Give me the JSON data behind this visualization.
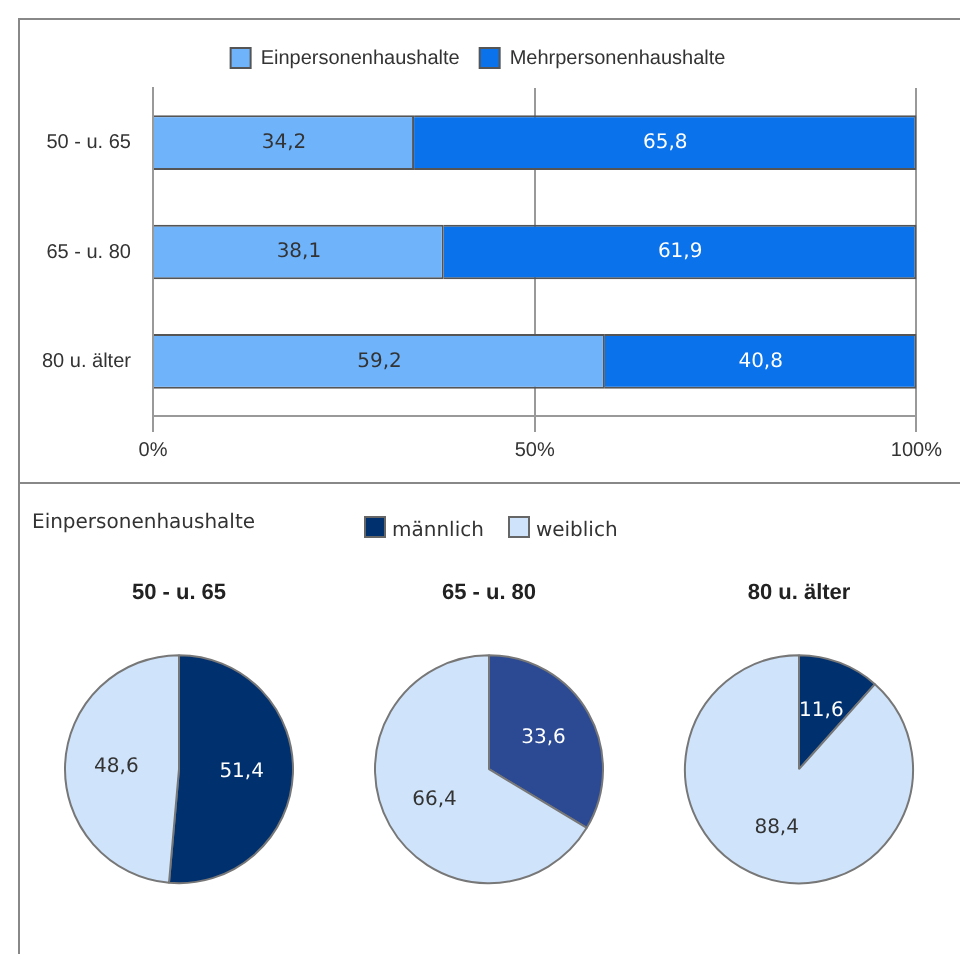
{
  "chart_data": [
    {
      "type": "bar",
      "orientation": "horizontal",
      "stacked": true,
      "categories": [
        "50 - u. 65",
        "65 - u. 80",
        "80 u. älter"
      ],
      "series": [
        {
          "name": "Einpersonenhaushalte",
          "color": "#6fb3fb",
          "values": [
            34.2,
            38.1,
            59.2
          ],
          "value_labels": [
            "34,2",
            "38,1",
            "59,2"
          ]
        },
        {
          "name": "Mehrpersonenhaushalte",
          "color": "#0a72ea",
          "values": [
            65.8,
            61.9,
            40.8
          ],
          "value_labels": [
            "65,8",
            "61,9",
            "40,8"
          ]
        }
      ],
      "xlim": [
        0,
        100
      ],
      "xticks": [
        {
          "value": 0,
          "label": "0%"
        },
        {
          "value": 50,
          "label": "50%"
        },
        {
          "value": 100,
          "label": "100%"
        }
      ],
      "grid": "x",
      "legend": "top"
    },
    {
      "type": "pie",
      "title": "50 - u. 65",
      "annotations": [
        "Einpersonenhaushalte"
      ],
      "categories": [
        "männlich",
        "weiblich"
      ],
      "values": [
        51.4,
        48.6
      ],
      "colors": [
        "#00306e",
        "#cfe4fb"
      ],
      "value_labels": [
        "51,4",
        "48,6"
      ],
      "legend": "top"
    },
    {
      "type": "pie",
      "title": "65 - u. 80",
      "categories": [
        null,
        null
      ],
      "values": [
        33.6,
        66.4
      ],
      "colors": [
        "#2b4a93",
        "#cfe4fb"
      ],
      "value_labels": [
        "33,6",
        "66,4"
      ]
    },
    {
      "type": "pie",
      "title": "80 u. älter",
      "categories": [
        null,
        null
      ],
      "values": [
        11.6,
        88.4
      ],
      "colors": [
        "#00306e",
        "#cfe4fb"
      ],
      "value_labels": [
        "11,6",
        "88,4"
      ]
    }
  ]
}
